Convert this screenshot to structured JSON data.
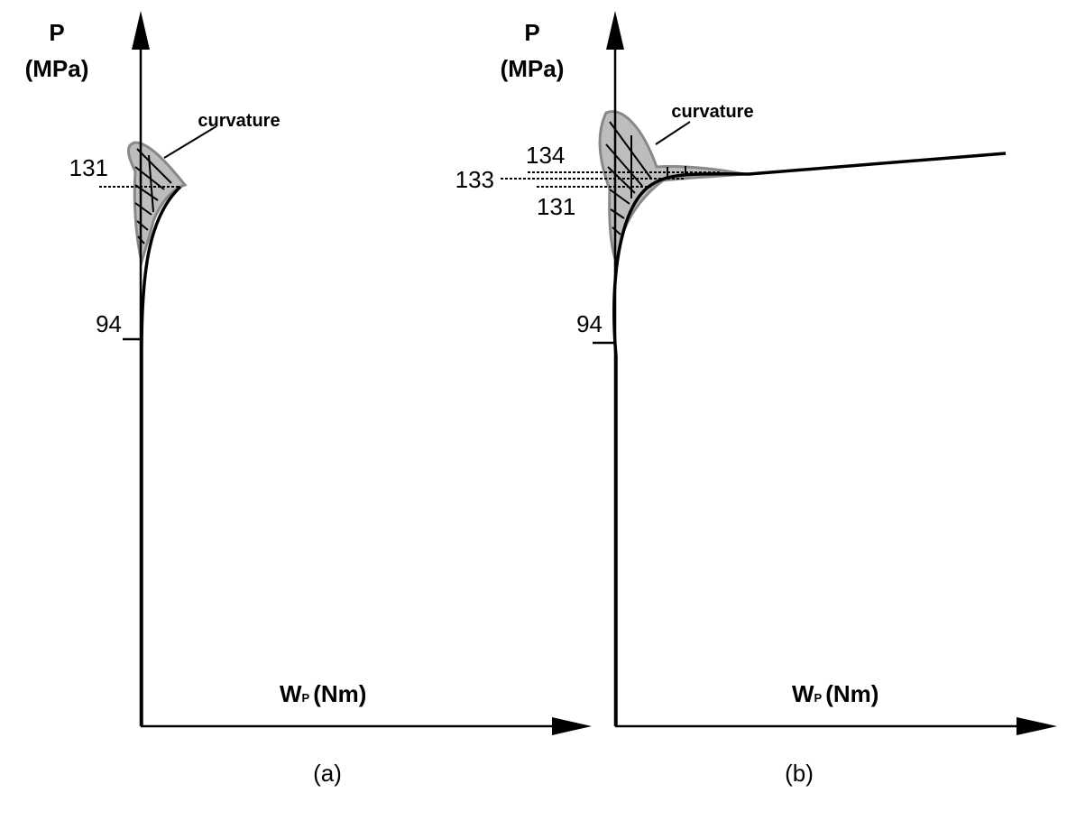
{
  "panels": [
    {
      "y_symbol": "P",
      "y_unit": "(MPa)",
      "annotation": "curvature",
      "levels": [
        "131",
        "94"
      ],
      "x_symbol": "W",
      "x_subscript": "P",
      "x_unit": "(Nm)",
      "caption": "(a)"
    },
    {
      "y_symbol": "P",
      "y_unit": "(MPa)",
      "annotation": "curvature",
      "levels": [
        "134",
        "133",
        "131",
        "94"
      ],
      "x_symbol": "W",
      "x_subscript": "P",
      "x_unit": "(Nm)",
      "caption": "(b)"
    }
  ]
}
